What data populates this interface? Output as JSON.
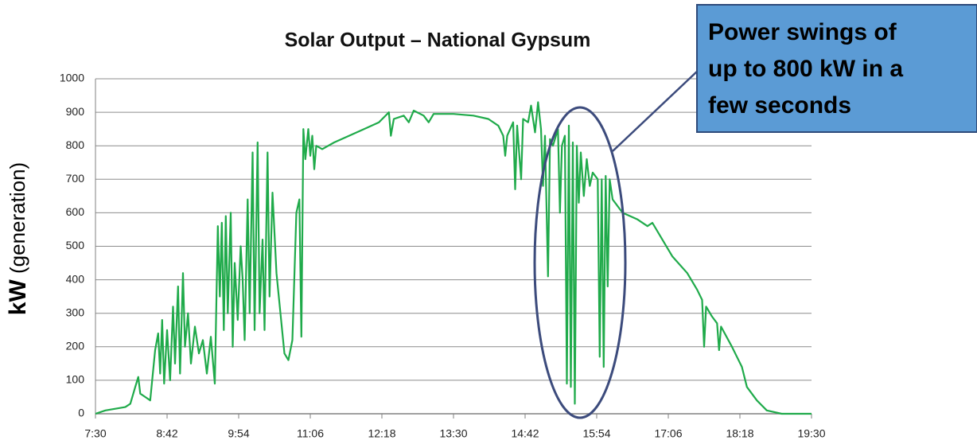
{
  "chart_data": {
    "type": "line",
    "title": "Solar Output – National Gypsum",
    "ylabel": {
      "unit": "kW",
      "text": "(generation)"
    },
    "annotation": [
      "Power swings of",
      "up to 800 kW in a",
      "few seconds"
    ],
    "ylim": [
      0,
      1000
    ],
    "yticks": [
      0,
      100,
      200,
      300,
      400,
      500,
      600,
      700,
      800,
      900,
      1000
    ],
    "xlim": [
      "7:30",
      "19:30"
    ],
    "xticks": [
      "7:30",
      "8:42",
      "9:54",
      "11:06",
      "12:18",
      "13:30",
      "14:42",
      "15:54",
      "17:06",
      "18:18",
      "19:30"
    ],
    "grid": true,
    "series": [
      {
        "color": "#1faa4a",
        "x": [
          "7:30",
          "7:40",
          "7:50",
          "8:00",
          "8:05",
          "8:10",
          "8:13",
          "8:15",
          "8:20",
          "8:25",
          "8:30",
          "8:33",
          "8:35",
          "8:37",
          "8:39",
          "8:42",
          "8:45",
          "8:48",
          "8:50",
          "8:53",
          "8:55",
          "8:58",
          "9:00",
          "9:03",
          "9:06",
          "9:10",
          "9:14",
          "9:18",
          "9:22",
          "9:26",
          "9:30",
          "9:33",
          "9:35",
          "9:37",
          "9:39",
          "9:41",
          "9:43",
          "9:46",
          "9:48",
          "9:50",
          "9:53",
          "9:56",
          "9:58",
          "10:00",
          "10:03",
          "10:05",
          "10:08",
          "10:10",
          "10:13",
          "10:15",
          "10:18",
          "10:20",
          "10:23",
          "10:25",
          "10:28",
          "10:32",
          "10:36",
          "10:40",
          "10:44",
          "10:48",
          "10:52",
          "10:55",
          "10:57",
          "10:59",
          "11:01",
          "11:04",
          "11:06",
          "11:08",
          "11:10",
          "11:12",
          "11:18",
          "11:30",
          "11:45",
          "12:00",
          "12:15",
          "12:25",
          "12:27",
          "12:30",
          "12:40",
          "12:45",
          "12:50",
          "13:00",
          "13:05",
          "13:10",
          "13:30",
          "13:50",
          "14:05",
          "14:15",
          "14:20",
          "14:22",
          "14:24",
          "14:30",
          "14:32",
          "14:34",
          "14:38",
          "14:40",
          "14:45",
          "14:48",
          "14:52",
          "14:55",
          "14:58",
          "15:00",
          "15:02",
          "15:05",
          "15:07",
          "15:10",
          "15:15",
          "15:17",
          "15:19",
          "15:22",
          "15:24",
          "15:26",
          "15:28",
          "15:30",
          "15:32",
          "15:34",
          "15:36",
          "15:38",
          "15:41",
          "15:44",
          "15:47",
          "15:50",
          "15:55",
          "15:57",
          "15:59",
          "16:01",
          "16:03",
          "16:05",
          "16:07",
          "16:10",
          "16:20",
          "16:35",
          "16:45",
          "16:50",
          "17:00",
          "17:10",
          "17:25",
          "17:35",
          "17:40",
          "17:42",
          "17:44",
          "17:50",
          "17:55",
          "17:57",
          "17:59",
          "18:10",
          "18:20",
          "18:25",
          "18:30",
          "18:35",
          "18:45",
          "19:00",
          "19:30"
        ],
        "values": [
          0,
          10,
          15,
          20,
          30,
          80,
          110,
          60,
          50,
          40,
          190,
          240,
          120,
          280,
          90,
          250,
          100,
          320,
          150,
          380,
          120,
          420,
          200,
          300,
          150,
          260,
          180,
          220,
          120,
          230,
          90,
          560,
          350,
          570,
          250,
          590,
          300,
          600,
          200,
          450,
          280,
          500,
          400,
          220,
          640,
          300,
          780,
          250,
          810,
          300,
          520,
          250,
          780,
          350,
          660,
          420,
          300,
          180,
          160,
          220,
          600,
          640,
          230,
          850,
          760,
          850,
          770,
          830,
          730,
          800,
          790,
          810,
          830,
          850,
          870,
          900,
          830,
          880,
          890,
          870,
          905,
          890,
          870,
          895,
          895,
          890,
          880,
          860,
          830,
          770,
          830,
          870,
          670,
          860,
          700,
          880,
          870,
          920,
          840,
          930,
          850,
          680,
          830,
          410,
          820,
          800,
          850,
          600,
          800,
          830,
          90,
          860,
          80,
          810,
          30,
          800,
          630,
          780,
          650,
          760,
          680,
          720,
          700,
          170,
          700,
          140,
          710,
          380,
          700,
          640,
          600,
          580,
          560,
          570,
          520,
          470,
          420,
          370,
          340,
          200,
          320,
          290,
          270,
          190,
          260,
          200,
          140,
          80,
          60,
          40,
          10,
          0,
          0
        ]
      }
    ]
  }
}
